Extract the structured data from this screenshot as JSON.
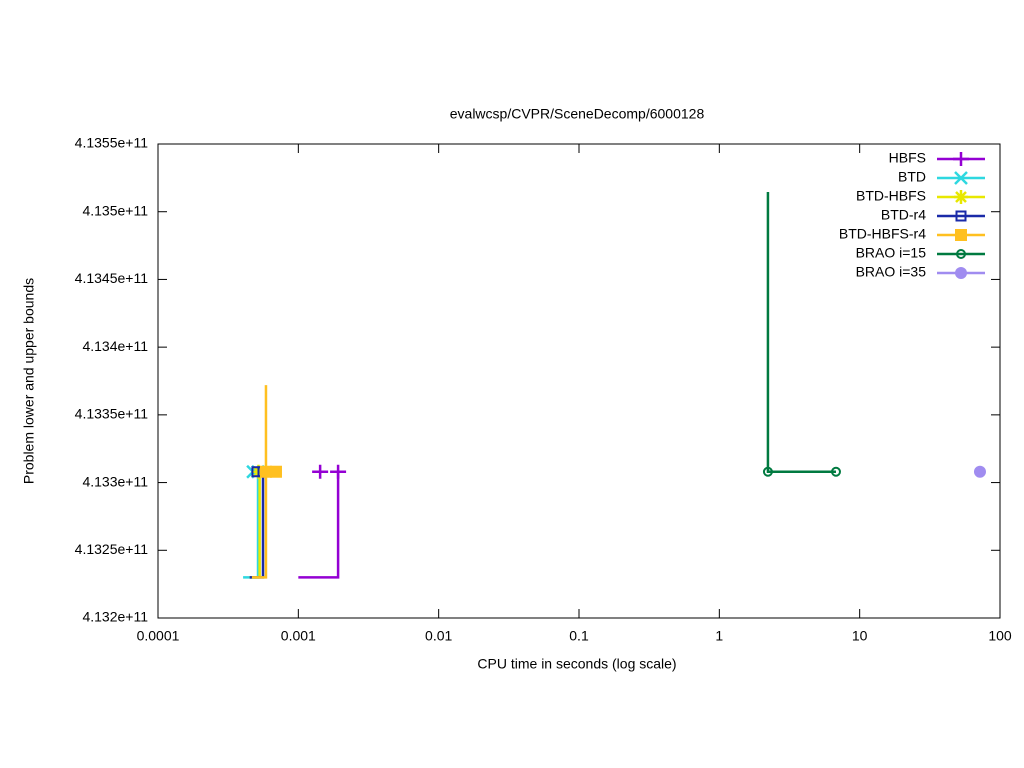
{
  "chart_data": {
    "type": "step-line",
    "title": "evalwcsp/CVPR/SceneDecomp/6000128",
    "x_label": "CPU time in seconds (log scale)",
    "y_label": "Problem lower and upper bounds",
    "log_x": true,
    "legend": "top-right",
    "xlim": [
      0.0001,
      100
    ],
    "xticks": [
      0.0001,
      0.001,
      0.01,
      0.1,
      1,
      10,
      100
    ],
    "ylim": [
      413200000000,
      413550000000
    ],
    "yticks": [
      {
        "value": 413200000000,
        "label": "4.132e+11"
      },
      {
        "value": 413250000000,
        "label": "4.1325e+11"
      },
      {
        "value": 413300000000,
        "label": "4.133e+11"
      },
      {
        "value": 413350000000,
        "label": "4.1335e+11"
      },
      {
        "value": 413400000000,
        "label": "4.134e+11"
      },
      {
        "value": 413450000000,
        "label": "4.1345e+11"
      },
      {
        "value": 413500000000,
        "label": "4.135e+11"
      },
      {
        "value": 413550000000,
        "label": "4.1355e+11"
      }
    ],
    "series": [
      {
        "name": "HBFS",
        "color": "#9400d3",
        "marker": "plus",
        "x": [
          0.001,
          0.00192,
          0.00192
        ],
        "values": [
          413230000000,
          413230000000,
          413308000000
        ],
        "marker_x": [
          0.00143,
          0.00192
        ],
        "marker_values": [
          413308000000,
          413308000000
        ]
      },
      {
        "name": "BTD",
        "color": "#2ed8e0",
        "marker": "cross",
        "x": [
          0.000404,
          0.000516,
          0.000516
        ],
        "values": [
          413230000000,
          413230000000,
          413308000000
        ],
        "marker_x": [
          0.000476,
          0.000516
        ],
        "marker_values": [
          413308000000,
          413308000000
        ]
      },
      {
        "name": "BTD-HBFS",
        "color": "#e8e800",
        "marker": "star",
        "x": [
          0.00045,
          0.00053,
          0.00053
        ],
        "values": [
          413230000000,
          413230000000,
          413308000000
        ],
        "marker_x": [
          0.00052
        ],
        "marker_values": [
          413308000000
        ]
      },
      {
        "name": "BTD-r4",
        "color": "#1a2aa8",
        "marker": "square-open",
        "x": [
          0.00045,
          0.00056,
          0.00056
        ],
        "values": [
          413230000000,
          413230000000,
          413308000000
        ],
        "marker_x": [
          0.000507,
          0.00056
        ],
        "marker_values": [
          413308000000,
          413308000000
        ]
      },
      {
        "name": "BTD-HBFS-r4",
        "color": "#ffc020",
        "marker": "square",
        "x": [
          0.000467,
          0.000588,
          0.000588,
          0.000588
        ],
        "values": [
          413230000000,
          413230000000,
          413372000000,
          413308000000
        ],
        "marker_x": [
          0.000588,
          0.000693
        ],
        "marker_values": [
          413308000000,
          413308000000
        ]
      },
      {
        "name": "BRAO i=15",
        "color": "#007a40",
        "marker": "circle-open",
        "x": [
          2.22,
          2.22,
          2.22,
          6.78
        ],
        "values": [
          413514600000,
          413320000000,
          413308000000,
          413308000000
        ],
        "marker_x": [
          2.22,
          6.78
        ],
        "marker_values": [
          413308000000,
          413308000000
        ]
      },
      {
        "name": "BRAO i=35",
        "color": "#a08cf0",
        "marker": "circle",
        "marker_x": [
          72.0
        ],
        "marker_values": [
          413308000000
        ]
      }
    ]
  }
}
